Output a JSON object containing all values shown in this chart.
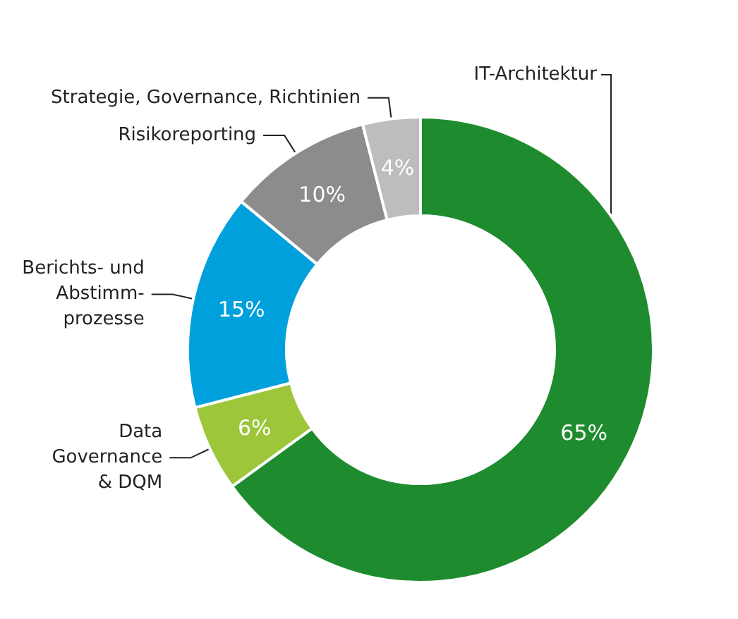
{
  "chart_data": {
    "type": "donut",
    "categories": [
      "IT-Architektur",
      "Data\nGovernance\n& DQM",
      "Berichts- und\nAbstimm-\nprozesse",
      "Risikoreporting",
      "Strategie, Governance, Richtinien"
    ],
    "values": [
      65,
      6,
      15,
      10,
      4
    ],
    "value_labels": [
      "65%",
      "6%",
      "15%",
      "10%",
      "4%"
    ],
    "colors": [
      "#1e8c2e",
      "#9dc63a",
      "#00a0dc",
      "#8c8c8c",
      "#bdbdbd"
    ],
    "legend": false
  }
}
